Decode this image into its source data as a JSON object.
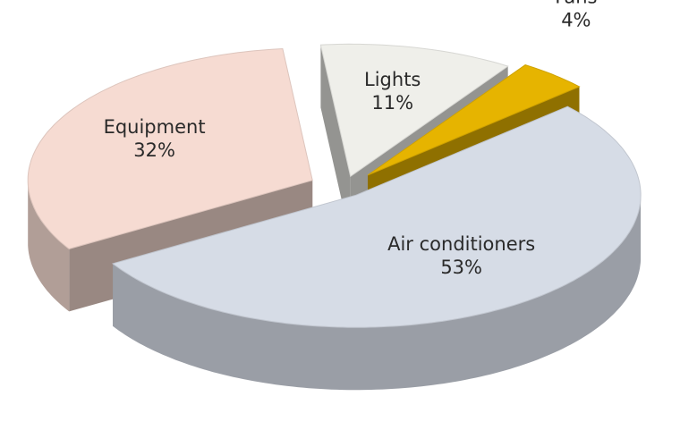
{
  "chart_data": {
    "type": "pie",
    "categories": [
      "Lights",
      "Fans",
      "Air conditioners",
      "Equipment"
    ],
    "values": [
      11,
      4,
      53,
      32
    ],
    "value_labels": [
      "11%",
      "4%",
      "53%",
      "32%"
    ],
    "colors": [
      "#efefea",
      "#e6b400",
      "#d6dce6",
      "#f6dbd2"
    ]
  }
}
